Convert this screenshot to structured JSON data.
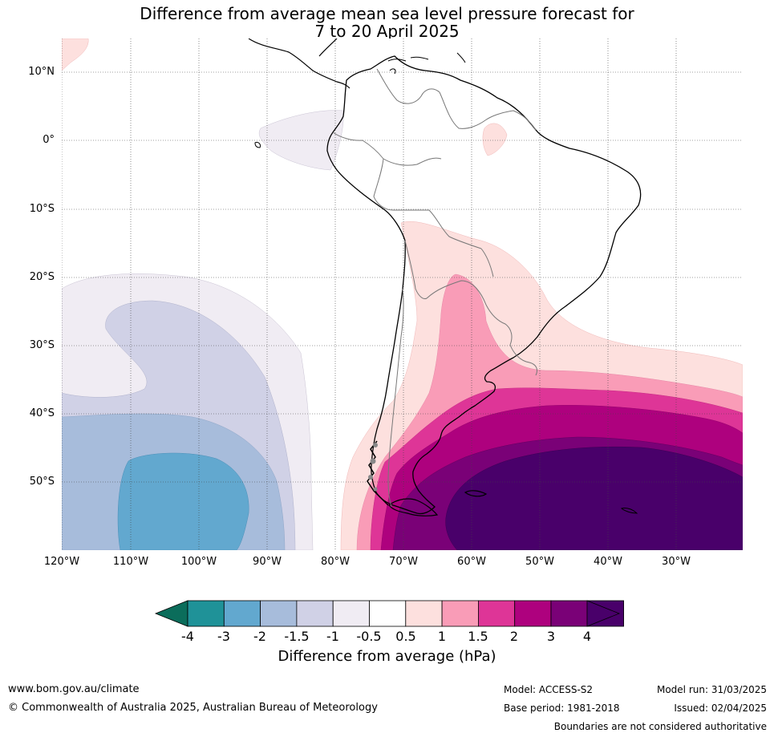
{
  "title": {
    "line1": "Difference from average mean sea level pressure forecast for",
    "line2": "7 to 20 April 2025"
  },
  "map": {
    "lat_labels": [
      "10°N",
      "0°",
      "10°S",
      "20°S",
      "30°S",
      "40°S",
      "50°S"
    ],
    "lon_labels": [
      "120°W",
      "110°W",
      "100°W",
      "90°W",
      "80°W",
      "70°W",
      "60°W",
      "50°W",
      "40°W",
      "30°W"
    ]
  },
  "colorbar": {
    "ticks": [
      "-4",
      "-3",
      "-2",
      "-1.5",
      "-1",
      "-0.5",
      "0.5",
      "1",
      "1.5",
      "2",
      "3",
      "4"
    ],
    "colors": [
      "#1f9298",
      "#62a8cf",
      "#a7bcdb",
      "#d0d1e6",
      "#f0ecf3",
      "#ffffff",
      "#fde0de",
      "#f99cb7",
      "#de3597",
      "#ae017e",
      "#7a0177",
      "#49006a"
    ],
    "under_color": "#0b6d5b",
    "over_color": "#49006a",
    "label": "Difference from average (hPa)"
  },
  "footer": {
    "website": "www.bom.gov.au/climate",
    "copyright": "© Commonwealth of Australia 2025, Australian Bureau of Meteorology",
    "model": "Model: ACCESS-S2",
    "base_period": "Base period: 1981-2018",
    "model_run": "Model run: 31/03/2025",
    "issued": "Issued: 02/04/2025",
    "disclaimer": "Boundaries are not considered authoritative"
  }
}
